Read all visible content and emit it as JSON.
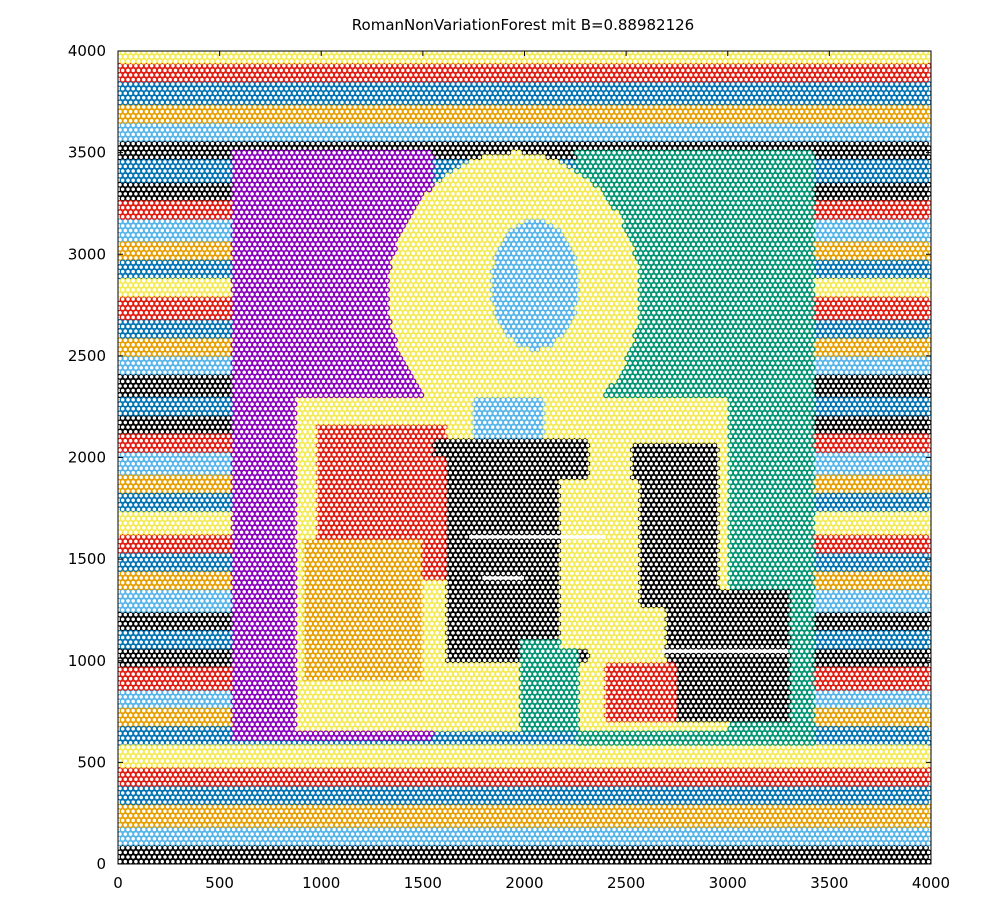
{
  "chart_data": {
    "type": "scatter",
    "title": "RomanNonVariationForest mit B=0.88982126",
    "xlabel": "",
    "ylabel": "",
    "xlim": [
      0,
      4000
    ],
    "ylim": [
      0,
      4000
    ],
    "xticks": [
      0,
      500,
      1000,
      1500,
      2000,
      2500,
      3000,
      3500,
      4000
    ],
    "yticks": [
      0,
      500,
      1000,
      1500,
      2000,
      2500,
      3000,
      3500,
      4000
    ],
    "grid": false,
    "marker": "open-circle",
    "lattice": {
      "spacing": 26,
      "row_step": 22.5,
      "count_estimate": 27000
    },
    "palette": {
      "purple": "#8b00bd",
      "teal": "#009473",
      "yellow": "#f3ea57",
      "red": "#e01b10",
      "blue": "#0072b2",
      "sky": "#56b4e9",
      "orange": "#e69f00",
      "black": "#000000"
    },
    "band_colors": [
      "black",
      "sky",
      "orange",
      "blue",
      "red",
      "yellow",
      "blue",
      "orange",
      "sky",
      "red",
      "black",
      "blue"
    ],
    "regions": [
      {
        "color": "purple",
        "x0": 560,
        "x1": 1550,
        "y0": 600,
        "y1": 3500
      },
      {
        "color": "teal",
        "x0": 2250,
        "x1": 3420,
        "y0": 580,
        "y1": 3500
      },
      {
        "color": "yellow",
        "ellipse": {
          "cx": 1950,
          "cy": 2800,
          "rx": 620,
          "ry": 700
        }
      },
      {
        "color": "sky",
        "ellipse": {
          "cx": 2050,
          "cy": 2850,
          "rx": 220,
          "ry": 320
        }
      },
      {
        "color": "yellow",
        "x0": 870,
        "x1": 3000,
        "y0": 650,
        "y1": 2300
      },
      {
        "color": "red",
        "x0": 980,
        "x1": 1620,
        "y0": 1400,
        "y1": 2150
      },
      {
        "color": "orange",
        "x0": 920,
        "x1": 1500,
        "y0": 900,
        "y1": 1600
      },
      {
        "color": "sky",
        "x0": 1750,
        "x1": 2100,
        "y0": 1800,
        "y1": 2300
      },
      {
        "color": "black",
        "x0": 1620,
        "x1": 2320,
        "y0": 1000,
        "y1": 2100
      },
      {
        "color": "black",
        "x0": 2530,
        "x1": 2950,
        "y0": 1250,
        "y1": 2080
      },
      {
        "color": "black",
        "x0": 2700,
        "x1": 3300,
        "y0": 700,
        "y1": 1350
      },
      {
        "color": "teal",
        "x0": 1980,
        "x1": 2260,
        "y0": 650,
        "y1": 1100
      },
      {
        "color": "red",
        "x0": 2400,
        "x1": 2750,
        "y0": 700,
        "y1": 1000
      },
      {
        "color": "yellow",
        "x0": 2170,
        "x1": 2560,
        "y0": 1050,
        "y1": 1900
      },
      {
        "color": "black",
        "x0": 1550,
        "x1": 1700,
        "y0": 2000,
        "y1": 2100
      }
    ],
    "gaps": [
      {
        "x0": 1720,
        "x1": 2400,
        "y0": 1590,
        "y1": 1610
      },
      {
        "x0": 2670,
        "x1": 3300,
        "y0": 1030,
        "y1": 1050
      },
      {
        "x0": 1800,
        "x1": 2000,
        "y0": 1400,
        "y1": 1420
      }
    ]
  }
}
